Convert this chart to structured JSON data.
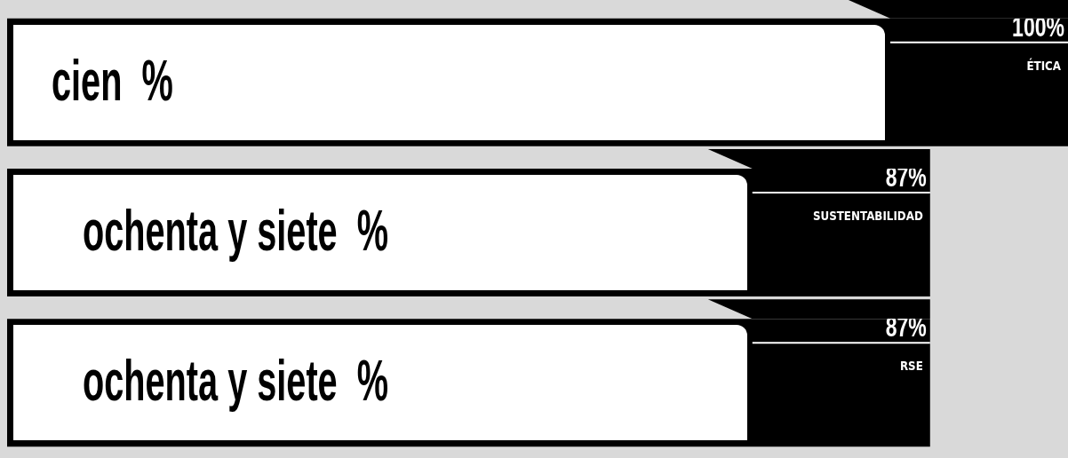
{
  "chart_data": {
    "type": "bar",
    "orientation": "horizontal",
    "categories": [
      "ÉTICA",
      "SUSTENTABILIDAD",
      "RSE"
    ],
    "values": [
      100,
      87,
      87
    ],
    "color": "#000000",
    "value_labels": [
      "100%",
      "87%",
      "87%"
    ],
    "annotations": [
      "cien  %",
      "ochenta y siete  %",
      "ochenta y siete  %"
    ]
  }
}
